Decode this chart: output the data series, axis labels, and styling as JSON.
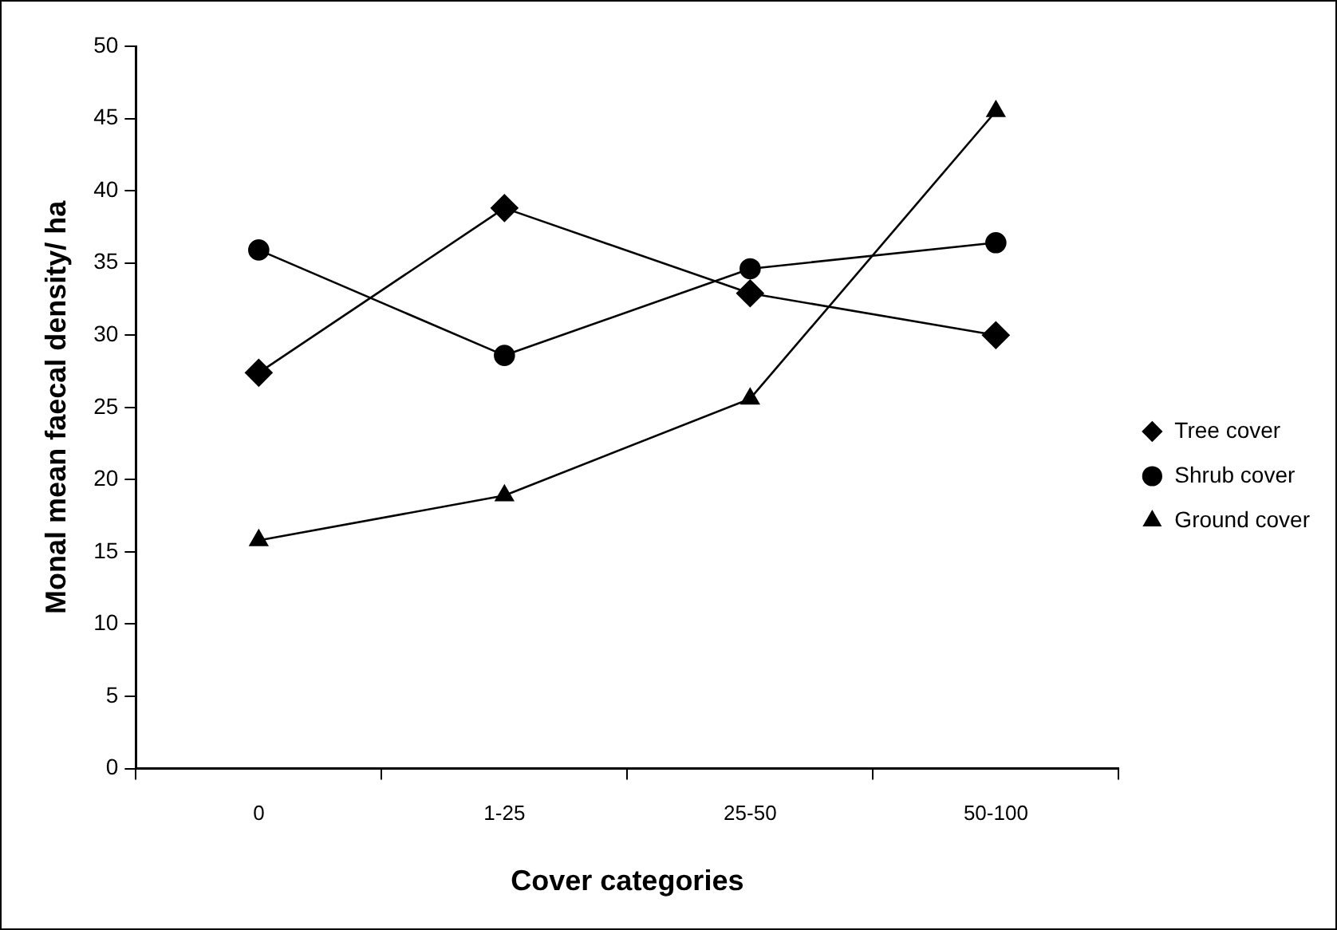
{
  "chart_data": {
    "type": "line",
    "xlabel": "Cover categories",
    "ylabel": "Monal mean faecal density/ ha",
    "categories": [
      "0",
      "1-25",
      "25-50",
      "50-100"
    ],
    "series": [
      {
        "name": "Tree cover",
        "color": "#000000",
        "marker": "diamond",
        "values": [
          27.4,
          38.8,
          32.9,
          30.0
        ]
      },
      {
        "name": "Shrub cover",
        "color": "#000000",
        "marker": "circle",
        "values": [
          35.9,
          28.6,
          34.6,
          36.4
        ]
      },
      {
        "name": "Ground cover",
        "color": "#000000",
        "marker": "triangle",
        "values": [
          15.8,
          18.9,
          25.6,
          45.5
        ]
      }
    ],
    "ylim": [
      0,
      50
    ],
    "yticks": [
      0,
      5,
      10,
      15,
      20,
      25,
      30,
      35,
      40,
      45,
      50
    ],
    "grid": false,
    "legend": "right",
    "line_style": "solid"
  }
}
